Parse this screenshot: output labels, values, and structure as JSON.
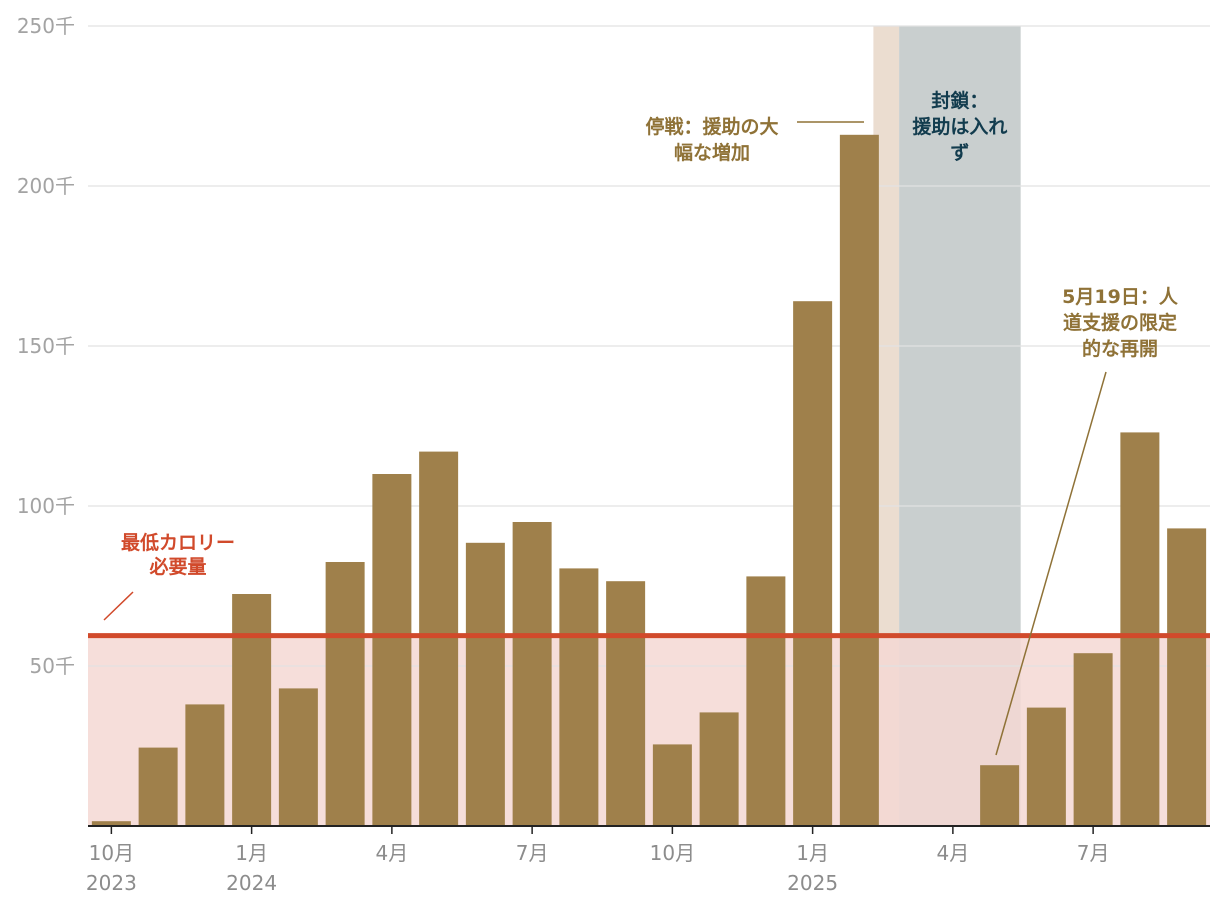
{
  "chart_data": {
    "type": "bar",
    "title": "",
    "xlabel": "",
    "ylabel": "",
    "ylim": [
      0,
      250000
    ],
    "y_ticks": [
      {
        "value": 50000,
        "label": "50千"
      },
      {
        "value": 100000,
        "label": "100千"
      },
      {
        "value": 150000,
        "label": "150千"
      },
      {
        "value": 200000,
        "label": "200千"
      },
      {
        "value": 250000,
        "label": "250千"
      }
    ],
    "categories": [
      "2023-10",
      "2023-11",
      "2023-12",
      "2024-01",
      "2024-02",
      "2024-03",
      "2024-04",
      "2024-05",
      "2024-06",
      "2024-07",
      "2024-08",
      "2024-09",
      "2024-10",
      "2024-11",
      "2024-12",
      "2025-01",
      "2025-02",
      "2025-03",
      "2025-04",
      "2025-05",
      "2025-06",
      "2025-07",
      "2025-08",
      "2025-09"
    ],
    "values": [
      1500,
      24500,
      38000,
      72500,
      43000,
      82500,
      110000,
      117000,
      88500,
      95000,
      80500,
      76500,
      25500,
      35500,
      78000,
      164000,
      216000,
      0,
      0,
      19000,
      37000,
      54000,
      123000,
      93000
    ],
    "x_tick_labels": [
      {
        "index": 0,
        "month": "10月",
        "year": "2023"
      },
      {
        "index": 3,
        "month": "1月",
        "year": "2024"
      },
      {
        "index": 6,
        "month": "4月",
        "year": ""
      },
      {
        "index": 9,
        "month": "7月",
        "year": ""
      },
      {
        "index": 12,
        "month": "10月",
        "year": ""
      },
      {
        "index": 15,
        "month": "1月",
        "year": "2025"
      },
      {
        "index": 18,
        "month": "4月",
        "year": ""
      },
      {
        "index": 21,
        "month": "7月",
        "year": ""
      }
    ],
    "threshold": {
      "value": 59500,
      "label_lines": [
        "最低カロリー",
        "必要量"
      ],
      "color": "#d14a2b",
      "fill": "#f4d8d4"
    },
    "bands": [
      {
        "from_index": 16.8,
        "to_index": 17.35,
        "color": "#ebddd0",
        "label_lines": []
      },
      {
        "from_index": 17.35,
        "to_index": 19.95,
        "color": "#c9cfcf",
        "label_lines": [
          "封鎖：",
          "援助は入れ",
          "ず"
        ],
        "label_color": "#123c4e"
      }
    ],
    "annotations": [
      {
        "id": "ceasefire",
        "lines": [
          "停戦：援助の大",
          "幅な増加"
        ],
        "color": "#8f7237"
      },
      {
        "id": "may19",
        "lines": [
          "5月19日：人",
          "道支援の限定",
          "的な再開"
        ],
        "color": "#8f7237"
      }
    ],
    "colors": {
      "bar": "#9f804b",
      "grid": "#e2e2e2",
      "axis": "#222222",
      "tick_text": "#a3a3a3",
      "x_text": "#8c8c8c"
    },
    "grid": true,
    "legend": "none"
  }
}
